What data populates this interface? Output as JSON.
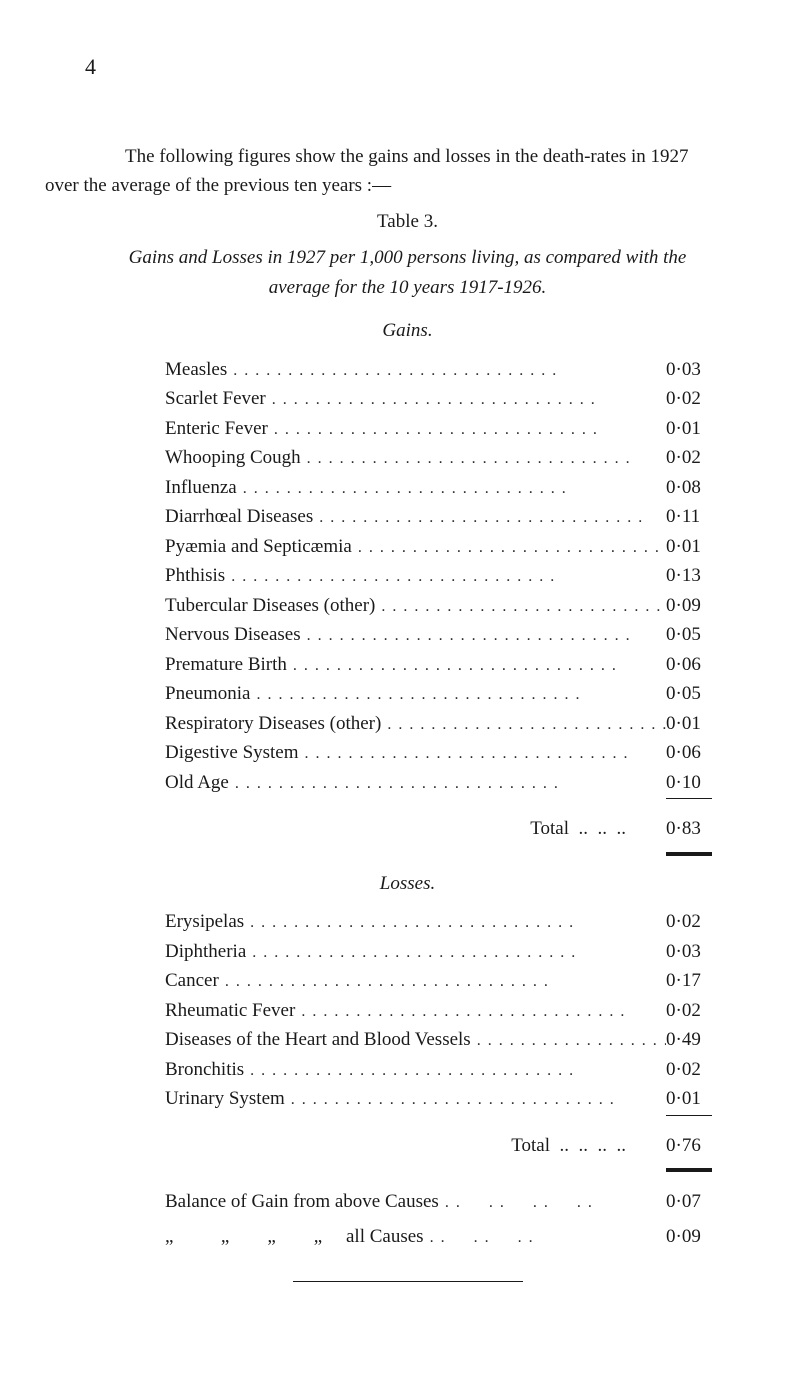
{
  "page_number": "4",
  "intro_line1": "The following figures show the gains and losses in the death-rates in 1927",
  "intro_line2": "over the average of the previous ten years :—",
  "table_label": "Table 3.",
  "caption_line1": "Gains and Losses in 1927 per 1,000 persons living, as compared with the",
  "caption_line2": "average for the 10 years 1917-1926.",
  "gains_heading": "Gains.",
  "gains": {
    "rows": [
      {
        "label": "Measles",
        "value": "0·03"
      },
      {
        "label": "Scarlet Fever",
        "value": "0·02"
      },
      {
        "label": "Enteric Fever",
        "value": "0·01"
      },
      {
        "label": "Whooping Cough",
        "value": "0·02"
      },
      {
        "label": "Influenza",
        "value": "0·08"
      },
      {
        "label": "Diarrhœal Diseases",
        "value": "0·11"
      },
      {
        "label": "Pyæmia and Septicæmia",
        "value": "0·01"
      },
      {
        "label": "Phthisis",
        "value": "0·13"
      },
      {
        "label": "Tubercular Diseases (other)",
        "value": "0·09"
      },
      {
        "label": "Nervous Diseases",
        "value": "0·05"
      },
      {
        "label": "Premature Birth",
        "value": "0·06"
      },
      {
        "label": "Pneumonia",
        "value": "0·05"
      },
      {
        "label": "Respiratory Diseases (other)",
        "value": "0·01"
      },
      {
        "label": "Digestive System",
        "value": "0·06"
      },
      {
        "label": "Old Age",
        "value": "0·10"
      }
    ],
    "total_label": "Total",
    "total_value": "0·83"
  },
  "losses_heading": "Losses.",
  "losses": {
    "rows": [
      {
        "label": "Erysipelas",
        "value": "0·02"
      },
      {
        "label": "Diphtheria",
        "value": "0·03"
      },
      {
        "label": "Cancer",
        "value": "0·17"
      },
      {
        "label": "Rheumatic Fever",
        "value": "0·02"
      },
      {
        "label": "Diseases of the Heart and Blood Vessels",
        "value": "0·49"
      },
      {
        "label": "Bronchitis",
        "value": "0·02"
      },
      {
        "label": "Urinary System",
        "value": "0·01"
      }
    ],
    "total_label": "Total",
    "total_value": "0·76"
  },
  "balance_above_label": "Balance of Gain from above Causes",
  "balance_above_value": "0·07",
  "balance_all_label": "„          „        „        „     all Causes",
  "balance_all_value": "0·09",
  "dot_fill": ".............................."
}
